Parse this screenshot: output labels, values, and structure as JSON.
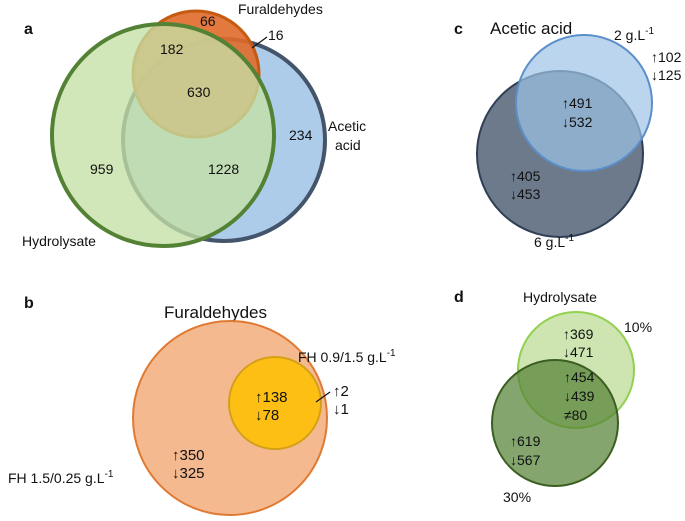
{
  "panel_a": {
    "letter": "a",
    "sets": {
      "furaldehydes": "Furaldehydes",
      "acetic_line1": "Acetic",
      "acetic_line2": "acid",
      "hydrolysate": "Hydrolysate"
    },
    "counts": {
      "fur_only": "66",
      "fur_hyd": "182",
      "fur_acetic": "16",
      "all_three": "630",
      "acetic_only": "234",
      "hyd_only": "959",
      "hyd_acetic": "1228"
    },
    "colors": {
      "furaldehydes": "#e06a2a",
      "acetic": "#9dc3e6",
      "acetic_border": "#44546a",
      "hydrolysate": "#c5e0a5",
      "hydrolysate_border": "#548235"
    }
  },
  "panel_b": {
    "letter": "b",
    "title": "Furaldehydes",
    "small_label": "FH 0.9/1.5 g.L",
    "small_label_sup": "-1",
    "large_label": "FH 1.5/0.25 g.L",
    "large_label_sup": "-1",
    "small_only_up": "↑2",
    "small_only_down": "↓1",
    "overlap_up": "↑138",
    "overlap_down": "↓78",
    "large_only_up": "↑350",
    "large_only_down": "↓325",
    "colors": {
      "large": "#f4b183",
      "small": "#ffc000"
    }
  },
  "panel_c": {
    "letter": "c",
    "title": "Acetic acid",
    "label_2": "2 g.L",
    "label_2_sup": "-1",
    "label_6": "6 g.L",
    "label_6_sup": "-1",
    "only2_up": "↑102",
    "only2_down": "↓125",
    "overlap_up": "↑491",
    "overlap_down": "↓532",
    "only6_up": "↑405",
    "only6_down": "↓453",
    "colors": {
      "c2": "#9dc3e6",
      "c6": "#44546a"
    }
  },
  "panel_d": {
    "letter": "d",
    "title": "Hydrolysate",
    "label_10": "10%",
    "label_30": "30%",
    "only10_up": "↑369",
    "only10_down": "↓471",
    "overlap_up": "↑454",
    "overlap_down": "↓439",
    "overlap_ne": "≠80",
    "only30_up": "↑619",
    "only30_down": "↓567",
    "colors": {
      "c10": "#a9d18e",
      "c30": "#548235"
    }
  }
}
